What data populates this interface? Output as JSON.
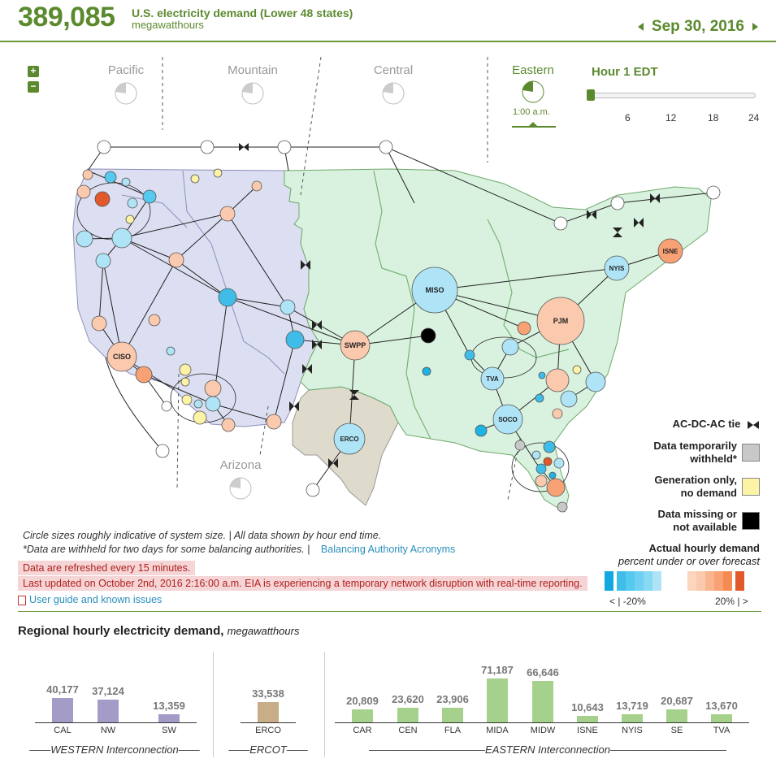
{
  "header": {
    "total_demand": "389,085",
    "title": "U.S. electricity demand (Lower 48 states)",
    "units": "megawatthours",
    "date": "Sep 30, 2016"
  },
  "timezones": [
    {
      "name": "Pacific"
    },
    {
      "name": "Mountain"
    },
    {
      "name": "Central"
    },
    {
      "name": "Eastern",
      "time": "1:00 a.m."
    },
    {
      "name": "Arizona"
    }
  ],
  "zoom": {
    "plus": "+",
    "minus": "−"
  },
  "slider": {
    "label": "Hour 1 EDT",
    "ticks": [
      "6",
      "12",
      "18",
      "24"
    ],
    "value_hour": 1,
    "max_hour": 24
  },
  "map_labels": {
    "miso": "MISO",
    "pjm": "PJM",
    "swpp": "SWPP",
    "ciso": "CISO",
    "nyis": "NYIS",
    "isne": "ISNE",
    "tva": "TVA",
    "soco": "SOCO",
    "erco": "ERCO"
  },
  "legend": {
    "tie": "AC-DC-AC tie",
    "withheld_1": "Data temporarily",
    "withheld_2": "withheld*",
    "generation_1": "Generation only,",
    "generation_2": "no demand",
    "missing_1": "Data missing or",
    "missing_2": "not available",
    "actual_title": "Actual hourly demand",
    "actual_sub": "percent under or over forecast",
    "under_label": "< | -20%",
    "over_label": "20% | >",
    "colors": {
      "withheld": "#c8c8c8",
      "generation": "#fdf3a6",
      "missing": "#000000"
    }
  },
  "notes": {
    "line1": "Circle sizes roughly indicative of system size.   |   All data shown by hour end time.",
    "line2": "*Data are withheld for two days for some balancing authorities.   |",
    "acronyms_link": "Balancing Authority Acronyms",
    "refresh": "Data are refreshed every 15 minutes.",
    "updated": "Last updated on October 2nd, 2016 2:16:00 a.m. EIA is experiencing a temporary network disruption with real-time reporting.",
    "guide_link": "User guide and known issues"
  },
  "regional": {
    "title": "Regional hourly electricity demand,",
    "units": "megawatthours",
    "groups": [
      {
        "name": "WESTERN Interconnection",
        "color": "#a49bc6",
        "bars": [
          {
            "cat": "CAL",
            "value": 40177,
            "label": "40,177"
          },
          {
            "cat": "NW",
            "value": 37124,
            "label": "37,124"
          },
          {
            "cat": "SW",
            "value": 13359,
            "label": "13,359"
          }
        ]
      },
      {
        "name": "ERCOT",
        "color": "#c8ae88",
        "bars": [
          {
            "cat": "ERCO",
            "value": 33538,
            "label": "33,538"
          }
        ]
      },
      {
        "name": "EASTERN Interconnection",
        "color": "#a6d18c",
        "bars": [
          {
            "cat": "CAR",
            "value": 20809,
            "label": "20,809"
          },
          {
            "cat": "CEN",
            "value": 23620,
            "label": "23,620"
          },
          {
            "cat": "FLA",
            "value": 23906,
            "label": "23,906"
          },
          {
            "cat": "MIDA",
            "value": 71187,
            "label": "71,187"
          },
          {
            "cat": "MIDW",
            "value": 66646,
            "label": "66,646"
          },
          {
            "cat": "ISNE",
            "value": 10643,
            "label": "10,643"
          },
          {
            "cat": "NYIS",
            "value": 13719,
            "label": "13,719"
          },
          {
            "cat": "SE",
            "value": 20687,
            "label": "20,687"
          },
          {
            "cat": "TVA",
            "value": 13670,
            "label": "13,670"
          }
        ]
      }
    ]
  }
}
